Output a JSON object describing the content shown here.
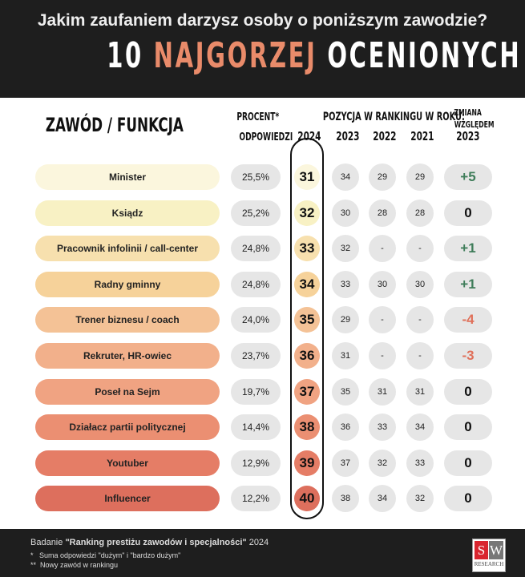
{
  "header": {
    "question": "Jakim zaufaniem darzysz osoby o poniższym zawodzie?",
    "title_a": "10",
    "title_b": "NAJGORZEJ",
    "title_c": "OCENIONYCH"
  },
  "columns": {
    "profession": "ZAWÓD / FUNKCJA",
    "percent_1": "PROCENT*",
    "percent_2": "ODPOWIEDZI",
    "ranking": "POZYCJA W RANKINGU W ROKU:",
    "years": [
      "2024",
      "2023",
      "2022",
      "2021"
    ],
    "change_1": "ZMIANA",
    "change_2": "WZGLĘDEM",
    "change_3": "2023"
  },
  "rows": [
    {
      "name": "Minister",
      "percent": "25,5%",
      "r2024": "31",
      "r2023": "34",
      "r2022": "29",
      "r2021": "29",
      "change": "+5",
      "color": "#fbf6dd"
    },
    {
      "name": "Ksiądz",
      "percent": "25,2%",
      "r2024": "32",
      "r2023": "30",
      "r2022": "28",
      "r2021": "28",
      "change": "0",
      "color": "#f8f1c4"
    },
    {
      "name": "Pracownik infolinii / call-center",
      "percent": "24,8%",
      "r2024": "33",
      "r2023": "32",
      "r2022": "-",
      "r2021": "-",
      "change": "+1",
      "color": "#f7e0ae"
    },
    {
      "name": "Radny gminny",
      "percent": "24,8%",
      "r2024": "34",
      "r2023": "33",
      "r2022": "30",
      "r2021": "30",
      "change": "+1",
      "color": "#f6d29a"
    },
    {
      "name": "Trener biznesu / coach",
      "percent": "24,0%",
      "r2024": "35",
      "r2023": "29",
      "r2022": "-",
      "r2021": "-",
      "change": "-4",
      "color": "#f4c296"
    },
    {
      "name": "Rekruter, HR-owiec",
      "percent": "23,7%",
      "r2024": "36",
      "r2023": "31",
      "r2022": "-",
      "r2021": "-",
      "change": "-3",
      "color": "#f2b08b"
    },
    {
      "name": "Poseł na Sejm",
      "percent": "19,7%",
      "r2024": "37",
      "r2023": "35",
      "r2022": "31",
      "r2021": "31",
      "change": "0",
      "color": "#f0a382"
    },
    {
      "name": "Działacz partii politycznej",
      "percent": "14,4%",
      "r2024": "38",
      "r2023": "36",
      "r2022": "33",
      "r2021": "34",
      "change": "0",
      "color": "#eb8f72"
    },
    {
      "name": "Youtuber",
      "percent": "12,9%",
      "r2024": "39",
      "r2023": "37",
      "r2022": "32",
      "r2021": "33",
      "change": "0",
      "color": "#e57d66"
    },
    {
      "name": "Influencer",
      "percent": "12,2%",
      "r2024": "40",
      "r2023": "38",
      "r2022": "34",
      "r2021": "32",
      "change": "0",
      "color": "#dd6f5d"
    }
  ],
  "colors": {
    "positive": "#3f7d5a",
    "negative": "#e0705a",
    "neutral": "#111111",
    "accent": "#e98b6a"
  },
  "footer": {
    "study_prefix": "Badanie ",
    "study_name": "\"Ranking prestiżu zawodów i specjalności\"",
    "study_year": " 2024",
    "note1": "*   Suma odpowiedzi \"dużym\" i \"bardzo dużym\"",
    "note2": "**  Nowy zawód w rankingu",
    "logo_s": "S",
    "logo_w": "W",
    "logo_text": "RESEARCH"
  }
}
